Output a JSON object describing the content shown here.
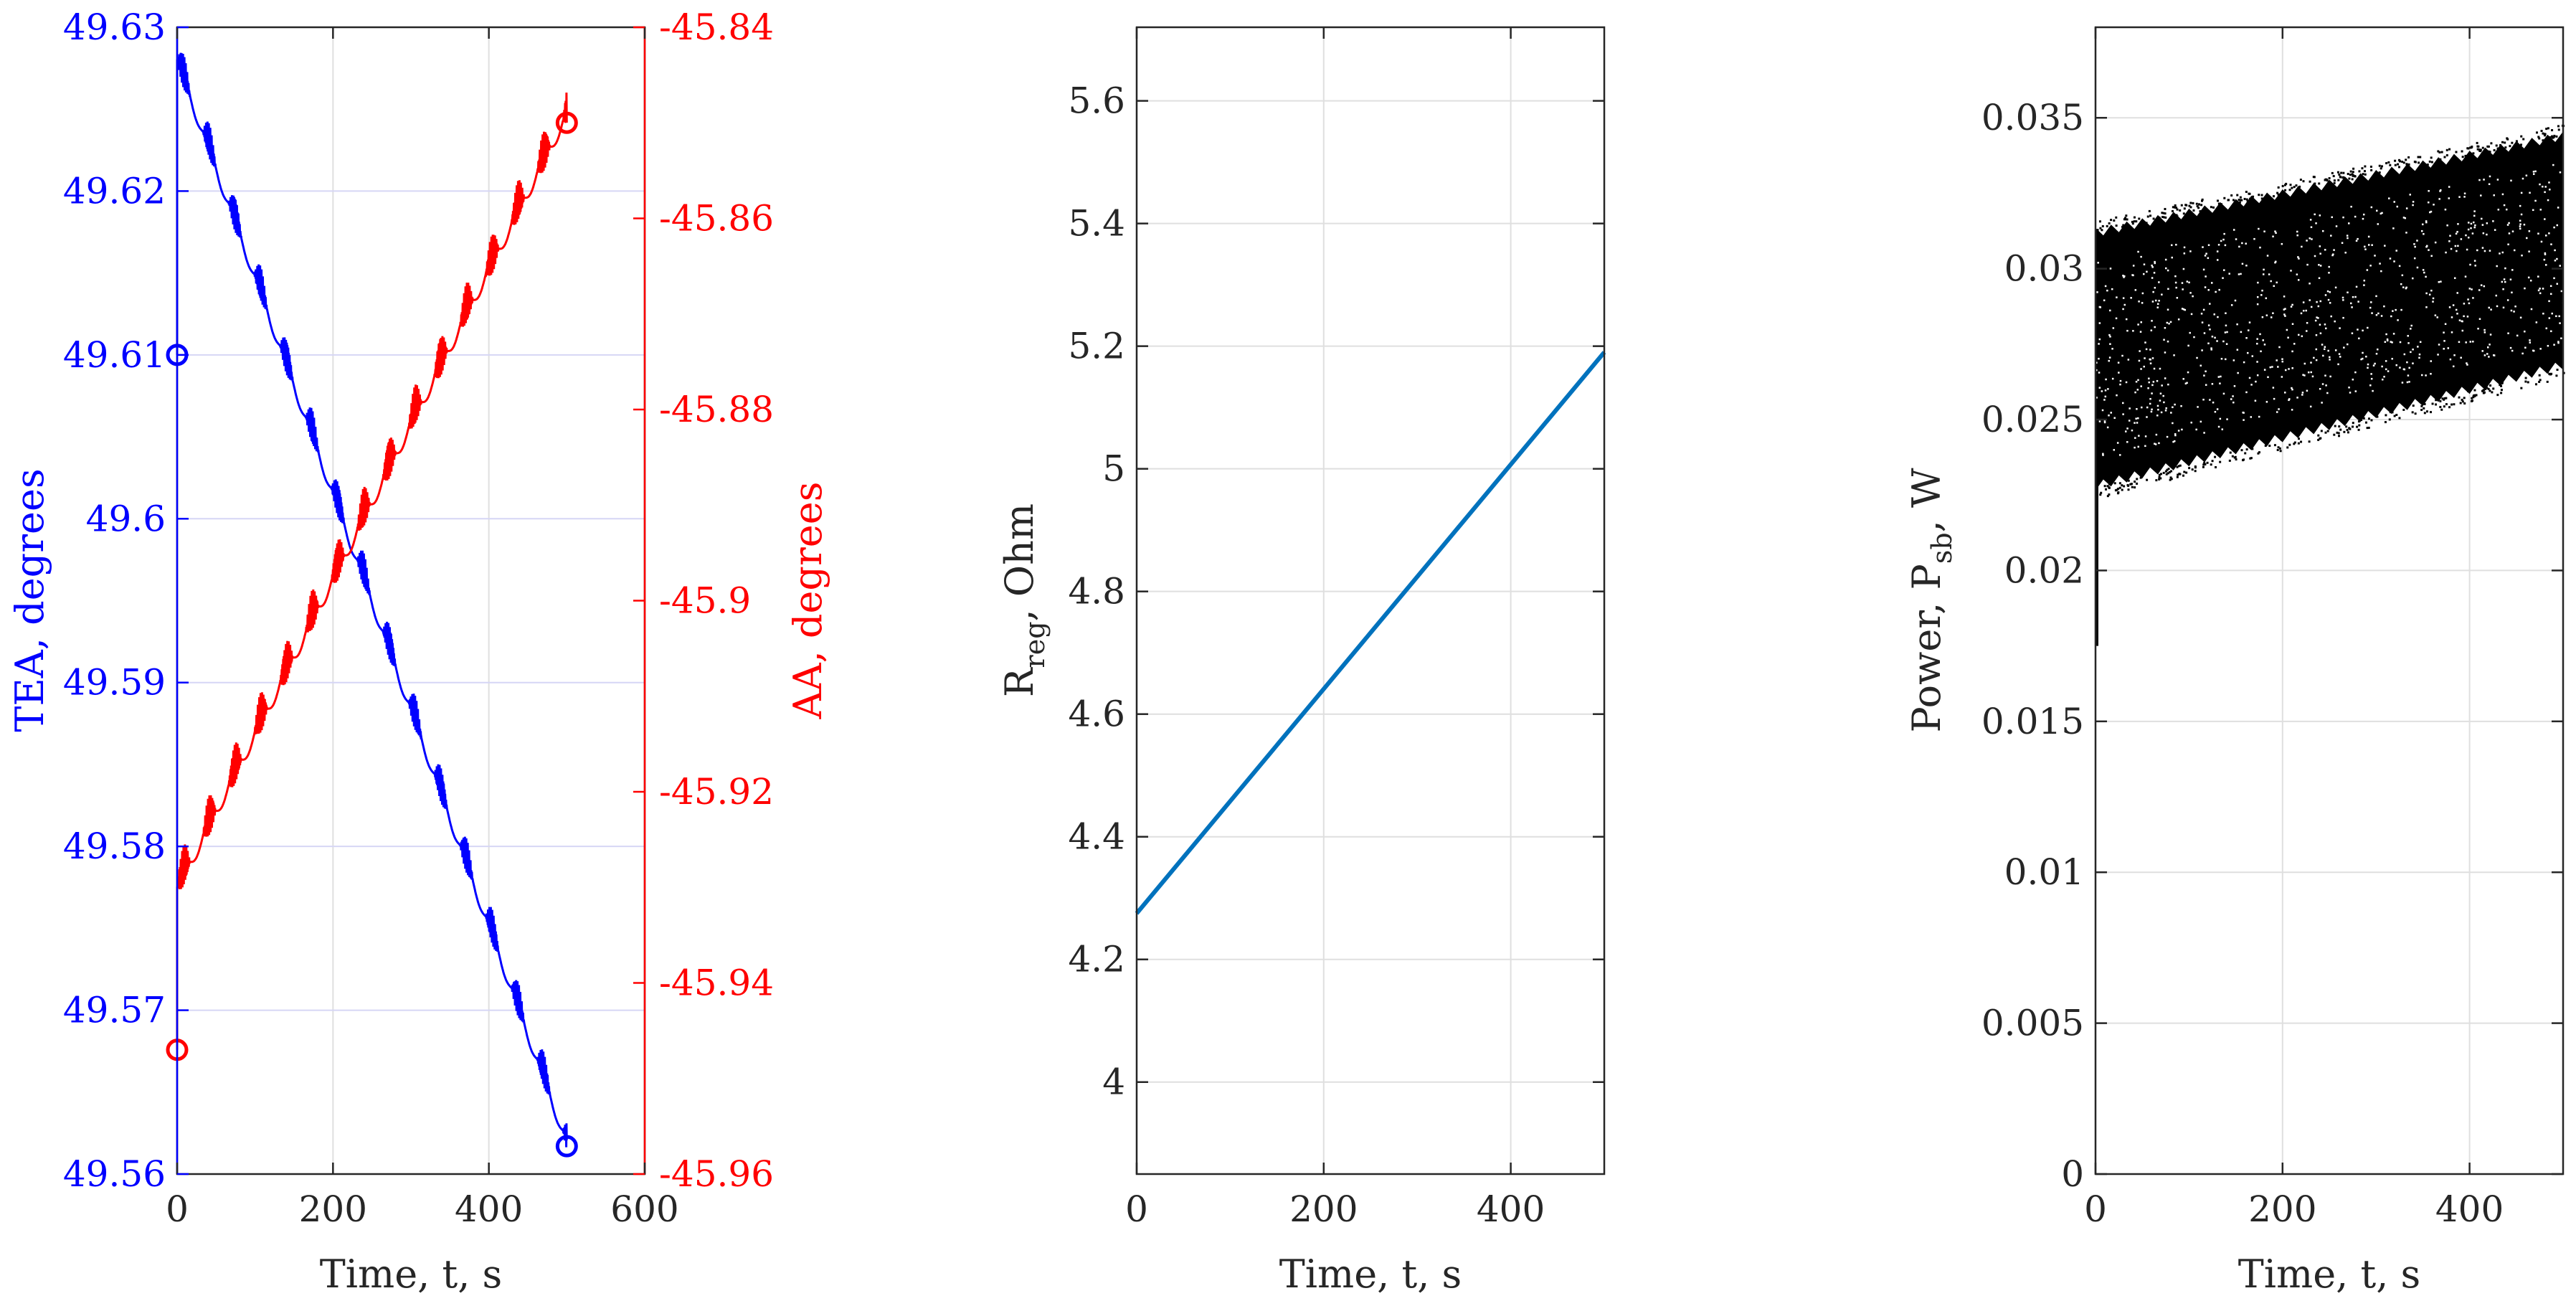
{
  "chart_data": [
    {
      "type": "line",
      "xlabel": "Time, t, s",
      "xlim": [
        0,
        600
      ],
      "xticks": [
        "0",
        "200",
        "400",
        "600"
      ],
      "grid": true,
      "left_axis": {
        "label": "TEA, degrees",
        "color": "#0000ff",
        "ylim": [
          49.56,
          49.63
        ],
        "yticks": [
          "49.56",
          "49.57",
          "49.58",
          "49.59",
          "49.6",
          "49.61",
          "49.62",
          "49.63"
        ]
      },
      "right_axis": {
        "label": "AA, degrees",
        "color": "#ff0000",
        "ylim": [
          -45.96,
          -45.84
        ],
        "yticks": [
          "-45.96",
          "-45.94",
          "-45.92",
          "-45.9",
          "-45.88",
          "-45.86",
          "-45.84"
        ]
      },
      "series": [
        {
          "axis": "left",
          "color": "#0000ff",
          "x": [
            0,
            500
          ],
          "y": [
            49.628,
            49.562
          ],
          "markers": [
            {
              "x": 0,
              "y": 49.61
            },
            {
              "x": 500,
              "y": 49.5617
            }
          ]
        },
        {
          "axis": "right",
          "color": "#ff0000",
          "x": [
            0,
            500
          ],
          "y": [
            -45.93,
            -45.849
          ],
          "markers": [
            {
              "x": 0,
              "y": -45.947
            },
            {
              "x": 500,
              "y": -45.85
            }
          ]
        }
      ]
    },
    {
      "type": "line",
      "xlabel": "Time, t, s",
      "ylabel": "R_reg, Ohm",
      "ylabel_main": "R",
      "ylabel_sub": "reg",
      "ylabel_rest": ", Ohm",
      "xlim": [
        0,
        500
      ],
      "ylim": [
        3.85,
        5.72
      ],
      "xticks": [
        "0",
        "200",
        "400"
      ],
      "yticks": [
        "4",
        "4.2",
        "4.4",
        "4.6",
        "4.8",
        "5",
        "5.2",
        "5.4",
        "5.6"
      ],
      "grid": true,
      "series": [
        {
          "color": "#0072bd",
          "x": [
            0,
            500
          ],
          "y": [
            4.275,
            5.19
          ]
        }
      ]
    },
    {
      "type": "scatter",
      "xlabel": "Time, t, s",
      "ylabel": "Power, P_sb, W",
      "ylabel_main": "Power, P",
      "ylabel_sub": "sb",
      "ylabel_rest": ", W",
      "xlim": [
        0,
        500
      ],
      "ylim": [
        0,
        0.038
      ],
      "xticks": [
        "0",
        "200",
        "400"
      ],
      "yticks": [
        "0",
        "0.005",
        "0.01",
        "0.015",
        "0.02",
        "0.025",
        "0.03",
        "0.035"
      ],
      "grid": true,
      "series": [
        {
          "color": "#000000",
          "band_x": [
            0,
            500
          ],
          "band_lower": [
            0.0228,
            0.0268
          ],
          "band_upper": [
            0.0312,
            0.0344
          ],
          "initial_min": 0.0175
        }
      ]
    }
  ]
}
